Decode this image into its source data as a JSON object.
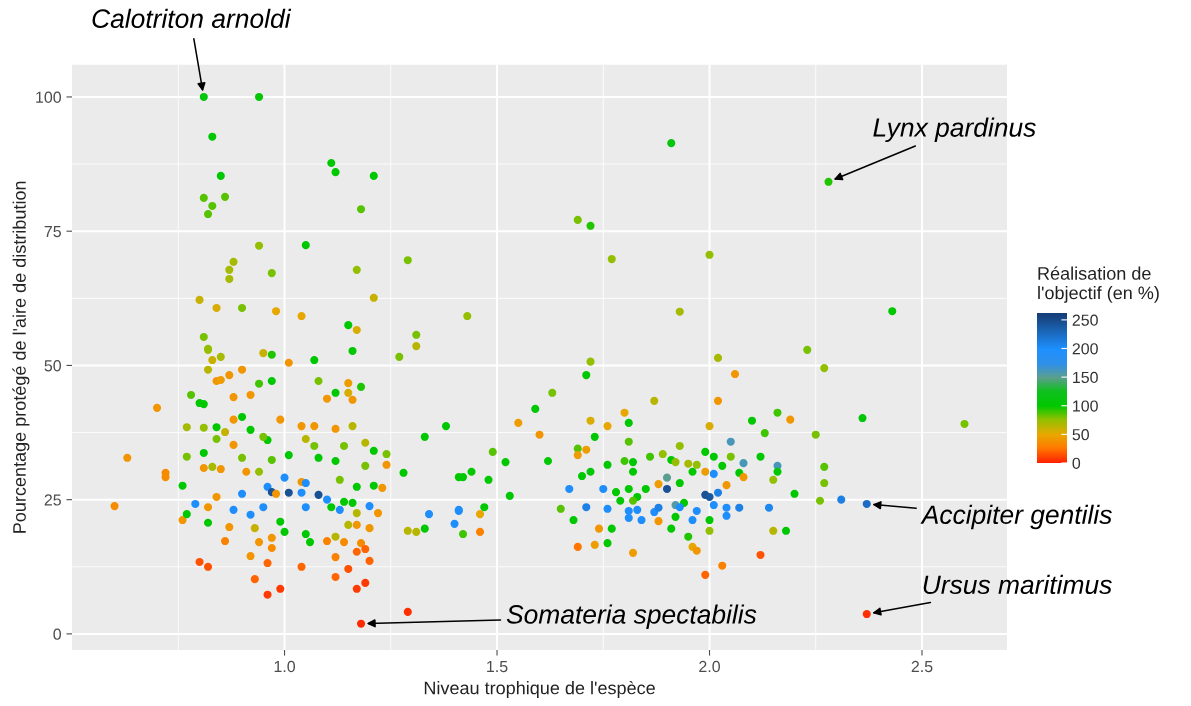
{
  "chart_data": {
    "type": "scatter",
    "xlabel": "Niveau trophique de l'espèce",
    "ylabel": "Pourcentage protégé de l'aire de distribution",
    "clabel": "Réalisation de\nl'objectif (en %)",
    "marker": "circle",
    "grid": true,
    "xlim": [
      0.5,
      2.7
    ],
    "ylim": [
      -3,
      106
    ],
    "xticks": [
      {
        "value": 1,
        "label": "1.0"
      },
      {
        "value": 1.5,
        "label": "1.5"
      },
      {
        "value": 2,
        "label": "2.0"
      },
      {
        "value": 2.5,
        "label": "2.5"
      }
    ],
    "yticks": [
      0,
      25,
      50,
      75,
      100
    ],
    "clim": [
      0,
      262
    ],
    "cticks": [
      0,
      50,
      100,
      150,
      200,
      250
    ],
    "annotations": [
      {
        "text": "Calotriton arnoldi",
        "x": 0.81,
        "y": 100
      },
      {
        "text": "Lynx pardinus",
        "x": 2.28,
        "y": 84.2
      },
      {
        "text": "Accipiter gentilis",
        "x": 2.37,
        "y": 24.2
      },
      {
        "text": "Ursus maritimus",
        "x": 2.37,
        "y": 3.7
      },
      {
        "text": "Somateria spectabilis",
        "x": 1.18,
        "y": 1.9
      }
    ],
    "x": [
      0.81,
      0.94,
      0.83,
      0.85,
      1.11,
      1.12,
      1.21,
      0.81,
      0.86,
      0.83,
      0.82,
      1.18,
      0.94,
      1.05,
      0.88,
      0.87,
      0.87,
      0.97,
      1.17,
      1.29,
      0.8,
      0.84,
      0.9,
      0.98,
      1.04,
      1.17,
      1.15,
      1.21,
      1.31,
      1.43,
      1.16,
      0.81,
      0.82,
      1.91,
      2.28,
      1.69,
      1.72,
      1.77,
      2.0,
      2.43,
      1.93,
      2.23,
      2.27,
      2.02,
      1.72,
      1.71,
      2.06,
      1.63,
      1.87,
      2.02,
      1.59,
      1.55,
      1.72,
      1.76,
      1.8,
      1.81,
      2.36,
      2.6,
      2.1,
      2.16,
      2.19,
      2.0,
      2.13,
      2.25,
      1.6,
      1.73,
      1.81,
      1.49,
      1.52,
      1.62,
      1.69,
      1.69,
      1.71,
      1.93,
      2.05,
      1.99,
      2.01,
      2.05,
      2.12,
      2.08,
      2.16,
      2.27,
      1.76,
      1.8,
      1.82,
      1.86,
      1.89,
      1.91,
      1.92,
      1.95,
      1.97,
      2.03,
      1.44,
      1.42,
      1.48,
      1.7,
      1.72,
      1.82,
      1.96,
      1.99,
      2.01,
      2.07,
      2.16,
      2.27,
      2.15,
      2.08,
      1.93,
      1.9,
      1.88,
      2.04,
      1.53,
      1.67,
      1.75,
      1.78,
      1.81,
      1.85,
      1.9,
      1.83,
      1.99,
      2.0,
      2.02,
      2.2,
      2.26,
      2.31,
      2.37,
      1.79,
      1.82,
      1.94,
      1.92,
      1.71,
      1.76,
      1.81,
      1.83,
      1.87,
      1.88,
      1.93,
      1.97,
      2.01,
      2.04,
      2.07,
      2.14,
      1.65,
      1.47,
      1.41,
      1.46,
      1.68,
      1.81,
      1.84,
      1.88,
      1.92,
      1.96,
      2.0,
      2.04,
      1.42,
      1.46,
      1.74,
      1.77,
      1.91,
      2.0,
      2.15,
      2.18,
      1.76,
      1.95,
      1.69,
      1.73,
      1.96,
      1.97,
      1.82,
      2.12,
      2.03,
      1.99,
      2.37,
      0.82,
      0.85,
      0.95,
      0.97,
      1.31,
      1.27,
      1.07,
      1.01,
      0.83,
      0.82,
      0.87,
      0.9,
      0.84,
      0.85,
      0.97,
      0.94,
      1.08,
      1.15,
      1.18,
      0.7,
      0.78,
      0.8,
      0.81,
      0.88,
      0.92,
      1.1,
      1.15,
      1.16,
      1.12,
      0.63,
      0.72,
      0.72,
      0.6,
      0.9,
      0.88,
      0.99,
      1.04,
      1.07,
      1.12,
      1.16,
      0.77,
      0.81,
      0.84,
      0.86,
      0.92,
      0.96,
      1.33,
      1.38,
      0.81,
      0.84,
      0.88,
      0.95,
      1.05,
      1.07,
      1.14,
      1.19,
      1.24,
      1.21,
      0.77,
      0.9,
      0.97,
      1.08,
      1.12,
      1.19,
      1.24,
      1.28,
      1.41,
      0.76,
      0.81,
      0.83,
      0.85,
      0.91,
      0.94,
      1.01,
      1.04,
      1.13,
      1.17,
      1.21,
      1.23,
      0.79,
      0.82,
      0.84,
      0.88,
      0.9,
      0.92,
      0.95,
      0.96,
      0.97,
      0.98,
      1.0,
      1.01,
      1.04,
      1.05,
      1.05,
      1.08,
      1.1,
      1.11,
      1.13,
      1.14,
      1.16,
      1.2,
      1.17,
      1.22,
      1.34,
      1.41,
      1.4,
      0.76,
      0.77,
      0.82,
      0.87,
      0.93,
      0.99,
      1.0,
      1.05,
      1.12,
      1.15,
      1.17,
      1.2,
      1.29,
      1.31,
      1.33,
      0.86,
      0.94,
      0.97,
      1.06,
      1.1,
      1.14,
      1.18,
      0.97,
      0.92,
      0.96,
      1.04,
      1.12,
      1.17,
      1.19,
      1.2,
      0.8,
      0.82,
      0.93,
      1.12,
      1.15,
      0.96,
      0.99,
      1.17,
      1.19,
      1.29,
      1.18
    ],
    "values": [
      100,
      100,
      92.6,
      85.3,
      87.7,
      86.0,
      85.3,
      81.2,
      81.4,
      79.7,
      78.2,
      79.1,
      72.3,
      72.4,
      69.3,
      67.8,
      66.1,
      67.2,
      67.8,
      69.6,
      62.2,
      60.7,
      60.7,
      60.1,
      59.2,
      56.6,
      57.5,
      62.6,
      55.7,
      59.2,
      52.7,
      55.3,
      53.1,
      91.4,
      84.2,
      77.1,
      76.0,
      69.8,
      70.6,
      60.1,
      60.0,
      52.9,
      49.5,
      51.4,
      50.7,
      48.2,
      48.4,
      44.9,
      43.4,
      43.4,
      41.9,
      39.3,
      39.7,
      38.7,
      41.2,
      39.3,
      40.2,
      39.1,
      39.7,
      41.2,
      39.9,
      38.7,
      37.4,
      37.1,
      37.1,
      36.7,
      35.8,
      33.9,
      32.0,
      32.2,
      34.5,
      33.3,
      34.3,
      35.0,
      35.8,
      33.9,
      33.0,
      33.0,
      33.0,
      31.8,
      31.3,
      31.1,
      31.5,
      32.2,
      32.0,
      33.0,
      33.5,
      32.4,
      32.0,
      31.7,
      31.5,
      31.3,
      30.2,
      29.2,
      28.7,
      29.4,
      30.2,
      30.2,
      30.2,
      30.2,
      29.8,
      30.0,
      30.2,
      28.1,
      28.7,
      29.2,
      28.1,
      29.1,
      27.9,
      27.7,
      25.7,
      27.0,
      27.0,
      26.4,
      27.0,
      27.0,
      27.0,
      25.5,
      25.9,
      25.5,
      26.3,
      26.1,
      24.8,
      25.0,
      24.2,
      24.8,
      24.8,
      24.4,
      24.0,
      23.6,
      23.3,
      22.9,
      23.1,
      22.7,
      23.5,
      23.6,
      22.9,
      24.0,
      23.5,
      23.5,
      23.5,
      23.3,
      23.6,
      22.9,
      22.3,
      21.2,
      21.6,
      21.2,
      21.0,
      21.8,
      21.2,
      21.2,
      22.0,
      18.6,
      19.0,
      19.6,
      19.6,
      19.6,
      19.2,
      19.2,
      19.2,
      16.9,
      18.1,
      16.2,
      16.6,
      16.2,
      15.5,
      15.1,
      14.7,
      12.7,
      11.0,
      3.7,
      52.9,
      51.6,
      52.3,
      52.0,
      53.6,
      51.6,
      51.0,
      50.5,
      51.0,
      49.2,
      48.2,
      49.2,
      47.1,
      47.3,
      47.1,
      46.6,
      47.1,
      46.7,
      46.0,
      42.1,
      44.5,
      43.0,
      42.8,
      44.1,
      44.5,
      43.8,
      44.9,
      43.6,
      44.9,
      32.8,
      30.0,
      29.2,
      23.8,
      40.4,
      39.9,
      39.9,
      38.7,
      38.7,
      38.2,
      38.7,
      38.5,
      38.4,
      38.5,
      37.6,
      38.0,
      36.1,
      36.7,
      38.7,
      33.7,
      36.3,
      35.2,
      36.7,
      36.3,
      35.0,
      35.0,
      35.6,
      33.5,
      34.1,
      33.0,
      32.8,
      32.4,
      32.8,
      32.2,
      31.3,
      31.5,
      30.0,
      29.2,
      27.6,
      30.9,
      31.1,
      30.7,
      30.2,
      30.2,
      33.3,
      28.3,
      28.7,
      27.4,
      27.6,
      27.2,
      24.2,
      23.6,
      25.5,
      23.1,
      26.1,
      22.2,
      23.6,
      27.4,
      26.4,
      26.1,
      29.1,
      26.3,
      26.3,
      28.1,
      23.6,
      25.9,
      25.0,
      23.6,
      23.1,
      24.6,
      24.4,
      23.8,
      22.5,
      22.5,
      22.3,
      23.1,
      20.5,
      21.2,
      22.3,
      20.7,
      19.9,
      19.7,
      20.9,
      19.0,
      18.6,
      18.1,
      20.3,
      20.3,
      19.7,
      19.2,
      19.0,
      19.6,
      17.3,
      17.1,
      17.9,
      17.1,
      17.3,
      17.1,
      16.9,
      16.0,
      14.5,
      13.2,
      12.5,
      14.3,
      15.3,
      15.8,
      13.6,
      13.4,
      12.5,
      10.2,
      10.6,
      12.1,
      7.3,
      8.4,
      8.4,
      9.5,
      4.1,
      1.9
    ],
    "cvalues": [
      110,
      105,
      100,
      100,
      100,
      100,
      100,
      85,
      85,
      85,
      85,
      85,
      75,
      100,
      70,
      70,
      70,
      80,
      75,
      80,
      60,
      55,
      80,
      50,
      50,
      55,
      100,
      60,
      80,
      75,
      100,
      80,
      75,
      110,
      95,
      80,
      95,
      75,
      75,
      100,
      70,
      80,
      75,
      70,
      75,
      100,
      40,
      80,
      65,
      40,
      100,
      45,
      55,
      50,
      50,
      100,
      105,
      80,
      100,
      90,
      40,
      55,
      90,
      80,
      40,
      100,
      85,
      85,
      100,
      100,
      85,
      45,
      45,
      75,
      160,
      100,
      100,
      80,
      100,
      160,
      160,
      85,
      100,
      90,
      100,
      90,
      75,
      100,
      75,
      70,
      75,
      100,
      100,
      100,
      100,
      100,
      105,
      100,
      100,
      45,
      200,
      100,
      100,
      80,
      75,
      40,
      100,
      150,
      45,
      40,
      100,
      200,
      200,
      100,
      100,
      100,
      245,
      100,
      245,
      240,
      210,
      100,
      80,
      210,
      225,
      100,
      85,
      100,
      155,
      210,
      200,
      200,
      200,
      200,
      210,
      200,
      200,
      200,
      200,
      210,
      205,
      85,
      100,
      200,
      50,
      100,
      200,
      200,
      40,
      100,
      200,
      100,
      200,
      90,
      30,
      40,
      100,
      100,
      75,
      65,
      100,
      100,
      95,
      25,
      45,
      50,
      40,
      45,
      15,
      30,
      20,
      5,
      75,
      70,
      60,
      95,
      65,
      80,
      100,
      40,
      60,
      65,
      40,
      40,
      40,
      45,
      100,
      90,
      80,
      45,
      95,
      40,
      85,
      100,
      100,
      40,
      40,
      40,
      55,
      40,
      100,
      40,
      35,
      35,
      35,
      100,
      40,
      40,
      40,
      40,
      40,
      65,
      70,
      75,
      100,
      60,
      100,
      100,
      100,
      100,
      100,
      80,
      40,
      80,
      65,
      80,
      80,
      65,
      80,
      100,
      80,
      80,
      85,
      100,
      100,
      80,
      40,
      100,
      100,
      100,
      40,
      70,
      40,
      40,
      75,
      100,
      40,
      80,
      100,
      100,
      40,
      200,
      40,
      40,
      200,
      200,
      200,
      200,
      200,
      245,
      40,
      200,
      245,
      200,
      200,
      200,
      245,
      200,
      100,
      200,
      100,
      100,
      200,
      65,
      40,
      200,
      200,
      200,
      40,
      100,
      100,
      40,
      60,
      100,
      100,
      100,
      65,
      65,
      40,
      40,
      65,
      65,
      100,
      30,
      40,
      40,
      100,
      30,
      35,
      35,
      35,
      40,
      20,
      20,
      30,
      20,
      20,
      20,
      15,
      15,
      20,
      20,
      15,
      8,
      8,
      8,
      8,
      5,
      3
    ]
  }
}
